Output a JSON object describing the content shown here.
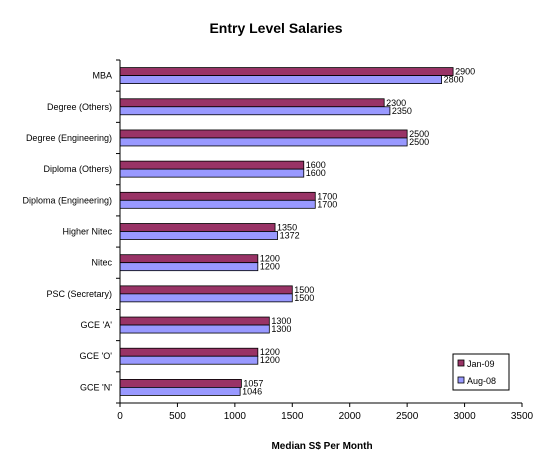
{
  "chart_data": {
    "type": "bar",
    "orientation": "horizontal",
    "title": "Entry Level Salaries",
    "xlabel": "Median S$ Per Month",
    "ylabel": "",
    "xlim": [
      0,
      3500
    ],
    "xticks": [
      0,
      500,
      1000,
      1500,
      2000,
      2500,
      3000,
      3500
    ],
    "grid": false,
    "legend_position": "bottom-right",
    "categories": [
      "MBA",
      "Degree (Others)",
      "Degree (Engineering)",
      "Diploma (Others)",
      "Diploma (Engineering)",
      "Higher Nitec",
      "Nitec",
      "PSC (Secretary)",
      "GCE 'A'",
      "GCE 'O'",
      "GCE 'N'"
    ],
    "series": [
      {
        "name": "Jan-09",
        "color": "#993366",
        "values": [
          2900,
          2300,
          2500,
          1600,
          1700,
          1350,
          1200,
          1500,
          1300,
          1200,
          1057
        ]
      },
      {
        "name": "Aug-08",
        "color": "#9999ff",
        "values": [
          2800,
          2350,
          2500,
          1600,
          1700,
          1372,
          1200,
          1500,
          1300,
          1200,
          1046
        ]
      }
    ]
  }
}
